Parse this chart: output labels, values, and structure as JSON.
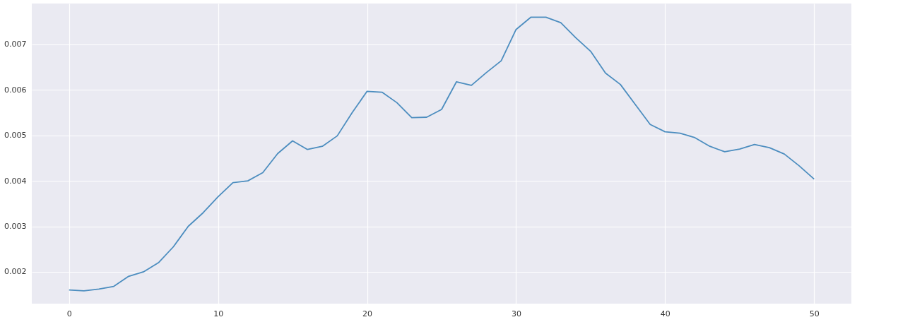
{
  "chart_data": {
    "type": "line",
    "x": [
      0,
      1,
      2,
      3,
      4,
      5,
      6,
      7,
      8,
      9,
      10,
      11,
      12,
      13,
      14,
      15,
      16,
      17,
      18,
      19,
      20,
      21,
      22,
      23,
      24,
      25,
      26,
      27,
      28,
      29,
      30,
      31,
      32,
      33,
      34,
      35,
      36,
      37,
      38,
      39,
      40,
      41,
      42,
      43,
      44,
      45,
      46,
      47,
      48,
      49,
      50
    ],
    "series": [
      {
        "color": "#4c8dbf",
        "values": [
          0.0016,
          0.00158,
          0.00162,
          0.00168,
          0.0019,
          0.002,
          0.0022,
          0.00255,
          0.003,
          0.0033,
          0.00365,
          0.00396,
          0.004,
          0.00418,
          0.0046,
          0.00488,
          0.00469,
          0.00476,
          0.00499,
          0.0055,
          0.00597,
          0.00595,
          0.00572,
          0.00539,
          0.0054,
          0.00557,
          0.00618,
          0.0061,
          0.00638,
          0.00664,
          0.00733,
          0.0076,
          0.0076,
          0.00748,
          0.00715,
          0.00685,
          0.00637,
          0.00612,
          0.00568,
          0.00524,
          0.00508,
          0.00505,
          0.00495,
          0.00476,
          0.00464,
          0.0047,
          0.0048,
          0.00473,
          0.00459,
          0.00433,
          0.00404
        ]
      }
    ],
    "xlim": [
      -2.5,
      52.5
    ],
    "xticks": [
      0,
      10,
      20,
      30,
      40,
      50
    ],
    "ylim": [
      0.0013,
      0.0079
    ],
    "yticks": [
      0.002,
      0.003,
      0.004,
      0.005,
      0.006,
      0.007
    ],
    "grid": true,
    "marker": "none",
    "line_style": "solid"
  }
}
